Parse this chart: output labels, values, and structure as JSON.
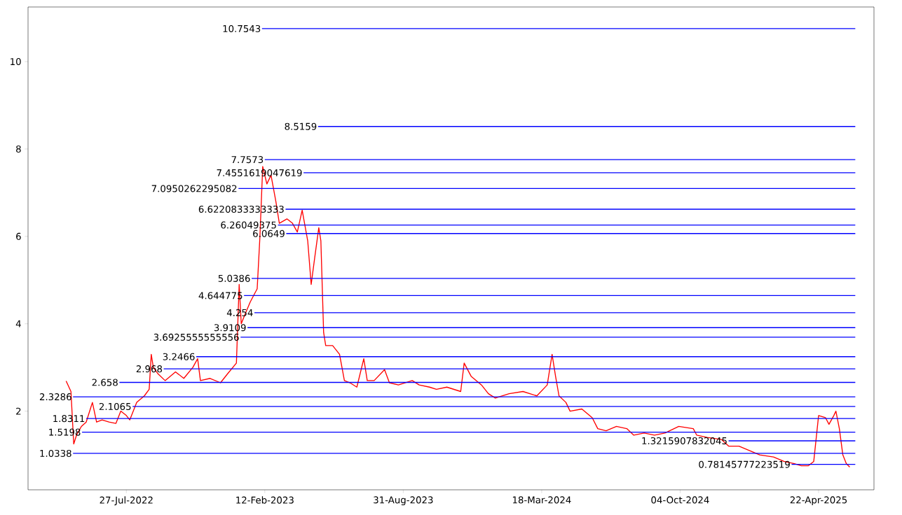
{
  "chart_data": {
    "type": "line",
    "xlim": [
      "2022-03-07",
      "2025-07-11"
    ],
    "ylim": [
      0.2,
      11.25
    ],
    "xticks": [
      {
        "value": "2022-07-27",
        "label": "27-Jul-2022"
      },
      {
        "value": "2023-02-12",
        "label": "12-Feb-2023"
      },
      {
        "value": "2023-08-31",
        "label": "31-Aug-2023"
      },
      {
        "value": "2024-03-18",
        "label": "18-Mar-2024"
      },
      {
        "value": "2024-10-04",
        "label": "04-Oct-2024"
      },
      {
        "value": "2025-04-22",
        "label": "22-Apr-2025"
      }
    ],
    "yticks": [
      2,
      4,
      6,
      8,
      10
    ],
    "marker": "none",
    "line_style": "solid",
    "series": [
      {
        "color": "#ff0000",
        "x": [
          "2022-05-01",
          "2022-05-08",
          "2022-05-12",
          "2022-05-16",
          "2022-05-23",
          "2022-05-30",
          "2022-06-05",
          "2022-06-08",
          "2022-06-14",
          "2022-06-22",
          "2022-07-02",
          "2022-07-12",
          "2022-07-19",
          "2022-07-27",
          "2022-08-01",
          "2022-08-11",
          "2022-08-22",
          "2022-08-29",
          "2022-09-01",
          "2022-09-04",
          "2022-09-11",
          "2022-09-21",
          "2022-10-06",
          "2022-10-18",
          "2022-10-31",
          "2022-11-07",
          "2022-11-11",
          "2022-11-25",
          "2022-12-10",
          "2022-12-20",
          "2023-01-02",
          "2023-01-06",
          "2023-01-09",
          "2023-01-14",
          "2023-01-22",
          "2023-02-01",
          "2023-02-05",
          "2023-02-09",
          "2023-02-15",
          "2023-02-21",
          "2023-02-28",
          "2023-03-05",
          "2023-03-16",
          "2023-03-24",
          "2023-03-31",
          "2023-04-07",
          "2023-04-15",
          "2023-04-20",
          "2023-04-25",
          "2023-05-01",
          "2023-05-04",
          "2023-05-08",
          "2023-05-11",
          "2023-05-21",
          "2023-05-31",
          "2023-06-07",
          "2023-06-15",
          "2023-06-25",
          "2023-07-05",
          "2023-07-10",
          "2023-07-20",
          "2023-08-04",
          "2023-08-11",
          "2023-08-24",
          "2023-09-13",
          "2023-09-23",
          "2023-10-08",
          "2023-10-18",
          "2023-11-02",
          "2023-11-22",
          "2023-11-27",
          "2023-12-07",
          "2023-12-22",
          "2024-01-01",
          "2024-01-11",
          "2024-01-31",
          "2024-02-20",
          "2024-03-11",
          "2024-03-26",
          "2024-04-02",
          "2024-04-07",
          "2024-04-12",
          "2024-04-22",
          "2024-04-28",
          "2024-05-15",
          "2024-05-30",
          "2024-06-07",
          "2024-06-19",
          "2024-07-04",
          "2024-07-19",
          "2024-07-29",
          "2024-08-13",
          "2024-08-28",
          "2024-09-12",
          "2024-10-02",
          "2024-10-23",
          "2024-10-28",
          "2024-11-12",
          "2024-12-03",
          "2024-12-13",
          "2024-12-28",
          "2025-01-12",
          "2025-01-27",
          "2025-02-16",
          "2025-03-03",
          "2025-03-18",
          "2025-03-28",
          "2025-04-07",
          "2025-04-15",
          "2025-04-22",
          "2025-05-02",
          "2025-05-07",
          "2025-05-14",
          "2025-05-17",
          "2025-05-22",
          "2025-05-27",
          "2025-06-01",
          "2025-06-06"
        ],
        "values": [
          2.69,
          2.45,
          1.25,
          1.45,
          1.65,
          1.75,
          2.05,
          2.2,
          1.75,
          1.8,
          1.75,
          1.72,
          2.0,
          1.9,
          1.8,
          2.2,
          2.35,
          2.5,
          3.3,
          3.0,
          2.85,
          2.7,
          2.9,
          2.75,
          3.0,
          3.2,
          2.7,
          2.75,
          2.65,
          2.85,
          3.1,
          4.9,
          4.0,
          4.2,
          4.5,
          4.8,
          6.0,
          7.6,
          7.2,
          7.4,
          6.8,
          6.3,
          6.4,
          6.3,
          6.1,
          6.6,
          5.9,
          4.9,
          5.5,
          6.2,
          5.9,
          3.8,
          3.5,
          3.5,
          3.3,
          2.7,
          2.65,
          2.55,
          3.2,
          2.7,
          2.7,
          2.95,
          2.65,
          2.6,
          2.7,
          2.6,
          2.55,
          2.5,
          2.55,
          2.45,
          3.1,
          2.8,
          2.6,
          2.4,
          2.3,
          2.4,
          2.45,
          2.35,
          2.6,
          3.3,
          2.8,
          2.35,
          2.2,
          2.0,
          2.05,
          1.85,
          1.6,
          1.55,
          1.65,
          1.6,
          1.45,
          1.5,
          1.45,
          1.5,
          1.65,
          1.6,
          1.45,
          1.4,
          1.35,
          1.2,
          1.2,
          1.1,
          1.0,
          0.95,
          0.85,
          0.8,
          0.75,
          0.75,
          0.85,
          1.9,
          1.85,
          1.7,
          1.9,
          2.0,
          1.6,
          1.0,
          0.8,
          0.72
        ]
      },
      {
        "color": "#0000ff",
        "x": [
          "2023-02-08",
          "2025-06-14"
        ],
        "values": [
          10.7543,
          10.7543
        ]
      },
      {
        "color": "#0000ff",
        "x": [
          "2023-04-30",
          "2025-06-14"
        ],
        "values": [
          8.5159,
          8.5159
        ]
      },
      {
        "color": "#0000ff",
        "x": [
          "2023-02-12",
          "2025-06-14"
        ],
        "values": [
          7.7573,
          7.7573
        ]
      },
      {
        "color": "#0000ff",
        "x": [
          "2023-04-09",
          "2025-06-14"
        ],
        "values": [
          7.4551619047619,
          7.4551619047619
        ]
      },
      {
        "color": "#0000ff",
        "x": [
          "2023-01-05",
          "2025-06-14"
        ],
        "values": [
          7.0950262295082,
          7.0950262295082
        ]
      },
      {
        "color": "#0000ff",
        "x": [
          "2023-03-14",
          "2025-06-14"
        ],
        "values": [
          6.6220833333333,
          6.6220833333333
        ]
      },
      {
        "color": "#0000ff",
        "x": [
          "2023-03-03",
          "2025-06-14"
        ],
        "values": [
          6.26049375,
          6.26049375
        ]
      },
      {
        "color": "#0000ff",
        "x": [
          "2023-03-15",
          "2025-06-14"
        ],
        "values": [
          6.0649,
          6.0649
        ]
      },
      {
        "color": "#0000ff",
        "x": [
          "2023-01-24",
          "2025-06-14"
        ],
        "values": [
          5.0386,
          5.0386
        ]
      },
      {
        "color": "#0000ff",
        "x": [
          "2023-01-13",
          "2025-06-14"
        ],
        "values": [
          4.644775,
          4.644775
        ]
      },
      {
        "color": "#0000ff",
        "x": [
          "2023-01-28",
          "2025-06-14"
        ],
        "values": [
          4.254,
          4.254
        ]
      },
      {
        "color": "#0000ff",
        "x": [
          "2023-01-18",
          "2025-06-14"
        ],
        "values": [
          3.9109,
          3.9109
        ]
      },
      {
        "color": "#0000ff",
        "x": [
          "2023-01-08",
          "2025-06-14"
        ],
        "values": [
          3.6925555555556,
          3.6925555555556
        ]
      },
      {
        "color": "#0000ff",
        "x": [
          "2022-11-05",
          "2025-06-14"
        ],
        "values": [
          3.2466,
          3.2466
        ]
      },
      {
        "color": "#0000ff",
        "x": [
          "2022-09-19",
          "2025-06-14"
        ],
        "values": [
          2.968,
          2.968
        ]
      },
      {
        "color": "#0000ff",
        "x": [
          "2022-07-17",
          "2025-06-14"
        ],
        "values": [
          2.658,
          2.658
        ]
      },
      {
        "color": "#0000ff",
        "x": [
          "2022-05-11",
          "2025-06-14"
        ],
        "values": [
          2.3286,
          2.3286
        ]
      },
      {
        "color": "#0000ff",
        "x": [
          "2022-08-05",
          "2025-06-14"
        ],
        "values": [
          2.1065,
          2.1065
        ]
      },
      {
        "color": "#0000ff",
        "x": [
          "2022-05-30",
          "2025-06-14"
        ],
        "values": [
          1.8311,
          1.8311
        ]
      },
      {
        "color": "#0000ff",
        "x": [
          "2022-05-24",
          "2025-06-14"
        ],
        "values": [
          1.5198,
          1.5198
        ]
      },
      {
        "color": "#0000ff",
        "x": [
          "2024-12-13",
          "2025-06-14"
        ],
        "values": [
          1.3215907832045,
          1.3215907832045
        ]
      },
      {
        "color": "#0000ff",
        "x": [
          "2022-05-11",
          "2025-06-14"
        ],
        "values": [
          1.0338,
          1.0338
        ]
      },
      {
        "color": "#0000ff",
        "x": [
          "2025-03-14",
          "2025-06-14"
        ],
        "values": [
          0.78145777223519,
          0.78145777223519
        ]
      }
    ],
    "annotations": [
      {
        "text": "10.7543",
        "x": "2023-02-08",
        "y": 10.7543
      },
      {
        "text": "8.5159",
        "x": "2023-04-30",
        "y": 8.5159
      },
      {
        "text": "7.7573",
        "x": "2023-02-12",
        "y": 7.7573
      },
      {
        "text": "7.4551619047619",
        "x": "2023-04-09",
        "y": 7.4551619047619
      },
      {
        "text": "7.0950262295082",
        "x": "2023-01-05",
        "y": 7.0950262295082
      },
      {
        "text": "6.6220833333333",
        "x": "2023-03-14",
        "y": 6.6220833333333
      },
      {
        "text": "6.26049375",
        "x": "2023-03-03",
        "y": 6.26049375
      },
      {
        "text": "6.0649",
        "x": "2023-03-15",
        "y": 6.0649
      },
      {
        "text": "5.0386",
        "x": "2023-01-24",
        "y": 5.0386
      },
      {
        "text": "4.644775",
        "x": "2023-01-13",
        "y": 4.644775
      },
      {
        "text": "4.254",
        "x": "2023-01-28",
        "y": 4.254
      },
      {
        "text": "3.9109",
        "x": "2023-01-18",
        "y": 3.9109
      },
      {
        "text": "3.6925555555556",
        "x": "2023-01-08",
        "y": 3.6925555555556
      },
      {
        "text": "3.2466",
        "x": "2022-11-05",
        "y": 3.2466
      },
      {
        "text": "2.968",
        "x": "2022-09-19",
        "y": 2.968
      },
      {
        "text": "2.658",
        "x": "2022-07-17",
        "y": 2.658
      },
      {
        "text": "2.3286",
        "x": "2022-05-11",
        "y": 2.3286
      },
      {
        "text": "2.1065",
        "x": "2022-08-05",
        "y": 2.1065
      },
      {
        "text": "1.8311",
        "x": "2022-05-30",
        "y": 1.8311
      },
      {
        "text": "1.5198",
        "x": "2022-05-24",
        "y": 1.5198
      },
      {
        "text": "1.3215907832045",
        "x": "2024-12-13",
        "y": 1.3215907832045
      },
      {
        "text": "1.0338",
        "x": "2022-05-11",
        "y": 1.0338
      },
      {
        "text": "0.78145777223519",
        "x": "2025-03-14",
        "y": 0.78145777223519
      }
    ]
  }
}
